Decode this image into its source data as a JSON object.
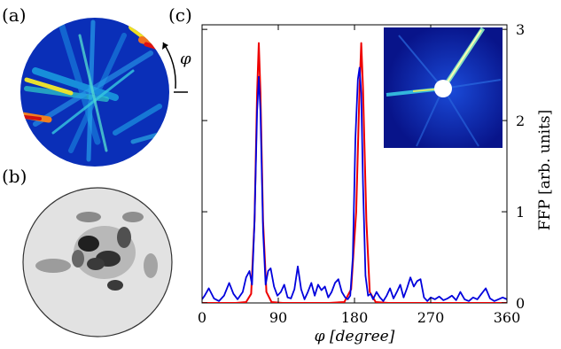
{
  "panels": {
    "a_label": "(a)",
    "b_label": "(b)",
    "c_label": "(c)",
    "phi_symbol": "φ"
  },
  "colors": {
    "red_series": "#ee0000",
    "blue_series": "#0000dd",
    "inset_background": "#0a1a8a",
    "grey_disk": "#e2e2e2"
  },
  "chart_data": {
    "type": "line",
    "xlabel": "φ [degree]",
    "ylabel": "FFP [arb. units]",
    "xlim": [
      0,
      360
    ],
    "ylim": [
      0,
      3.05
    ],
    "xticks": [
      0,
      90,
      180,
      270,
      360
    ],
    "yticks": [
      0,
      1,
      2,
      3
    ],
    "yaxis_side": "right",
    "grid": false,
    "legend": "none",
    "series": [
      {
        "color": "#ee0000",
        "x": [
          0,
          40,
          52,
          58,
          62,
          65,
          67,
          69,
          72,
          76,
          82,
          95,
          150,
          168,
          176,
          182,
          186,
          188,
          190,
          194,
          198,
          205,
          220,
          360
        ],
        "values": [
          0,
          0,
          0.01,
          0.1,
          0.9,
          2.3,
          2.85,
          2.3,
          0.9,
          0.12,
          0.01,
          0,
          0,
          0.01,
          0.15,
          1.0,
          2.35,
          2.85,
          2.35,
          0.9,
          0.12,
          0.01,
          0,
          0
        ]
      },
      {
        "color": "#0000dd",
        "x": [
          0,
          3,
          8,
          14,
          20,
          26,
          32,
          37,
          42,
          48,
          52,
          56,
          59,
          62,
          65,
          67,
          69,
          72,
          75,
          78,
          81,
          85,
          89,
          93,
          97,
          101,
          105,
          109,
          113,
          117,
          121,
          125,
          129,
          133,
          137,
          141,
          145,
          149,
          153,
          157,
          161,
          165,
          169,
          172,
          175,
          178,
          181,
          184,
          186,
          188,
          190,
          193,
          196,
          199,
          202,
          206,
          210,
          214,
          218,
          222,
          226,
          230,
          234,
          238,
          242,
          246,
          250,
          254,
          258,
          262,
          266,
          270,
          275,
          280,
          285,
          290,
          295,
          300,
          305,
          310,
          315,
          320,
          325,
          330,
          335,
          340,
          345,
          350,
          355,
          360
        ],
        "values": [
          0.04,
          0.08,
          0.16,
          0.05,
          0.02,
          0.08,
          0.22,
          0.1,
          0.04,
          0.12,
          0.28,
          0.35,
          0.2,
          0.9,
          2.1,
          2.48,
          2.1,
          0.8,
          0.2,
          0.35,
          0.38,
          0.18,
          0.08,
          0.12,
          0.2,
          0.06,
          0.05,
          0.15,
          0.4,
          0.15,
          0.04,
          0.12,
          0.22,
          0.08,
          0.2,
          0.14,
          0.18,
          0.06,
          0.12,
          0.22,
          0.26,
          0.12,
          0.06,
          0.04,
          0.08,
          0.5,
          1.8,
          2.45,
          2.58,
          2.3,
          1.3,
          0.3,
          0.08,
          0.1,
          0.04,
          0.12,
          0.06,
          0.02,
          0.08,
          0.16,
          0.05,
          0.12,
          0.2,
          0.06,
          0.16,
          0.28,
          0.18,
          0.24,
          0.26,
          0.06,
          0.02,
          0.06,
          0.04,
          0.07,
          0.03,
          0.05,
          0.08,
          0.03,
          0.12,
          0.04,
          0.02,
          0.06,
          0.04,
          0.1,
          0.16,
          0.05,
          0.02,
          0.04,
          0.06,
          0.04
        ]
      }
    ]
  }
}
